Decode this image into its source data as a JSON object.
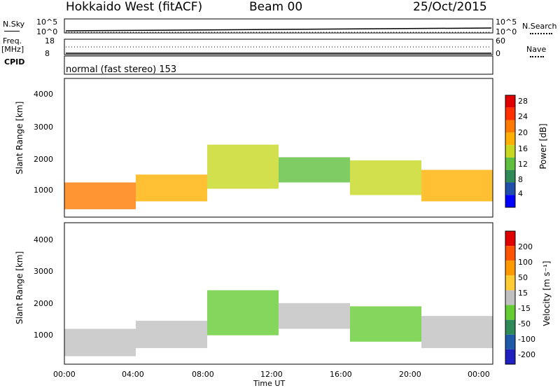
{
  "header": {
    "station": "Hokkaido West (fitACF)",
    "beam": "Beam 00",
    "date": "25/Oct/2015"
  },
  "top_panels": {
    "nsky_label": "N.Sky",
    "nsky_ticks": [
      "10^5",
      "10^0"
    ],
    "nsearch_label": "N.Search",
    "nsearch_ticks": [
      "10^5",
      "10^0"
    ],
    "freq_label": "Freq.",
    "freq_unit": "[MHz]",
    "freq_ticks": [
      "18",
      "8"
    ],
    "nave_label": "Nave",
    "nave_ticks": [
      "60",
      "0"
    ],
    "cpid_label": "CPID",
    "cpid_value": "normal (fast stereo) 153"
  },
  "colors": {
    "power_scale": [
      "#0000ff",
      "#1f4faa",
      "#2e8b57",
      "#5fbf3f",
      "#c8d820",
      "#ffb000",
      "#ff7a00",
      "#ff3000",
      "#e00000"
    ],
    "velocity_scale": [
      "#2020c0",
      "#1e5aa8",
      "#2e8b57",
      "#66cc33",
      "#c0c0c0",
      "#ffcc33",
      "#ff9900",
      "#ff5500",
      "#e00000"
    ]
  },
  "chart_data": [
    {
      "type": "heatmap",
      "name": "power",
      "ylabel": "Slant Range [km]",
      "yticks": [
        "4000",
        "3000",
        "2000",
        "1000"
      ],
      "ylim": [
        200,
        4600
      ],
      "xlim": [
        "00:00",
        "24:00"
      ],
      "colorbar": {
        "label": "Power [dB]",
        "ticks": [
          "28",
          "24",
          "20",
          "16",
          "12",
          "8",
          "4"
        ],
        "range": [
          0,
          30
        ]
      },
      "bands": [
        {
          "t0": 0,
          "t1": 4,
          "r_low": 450,
          "r_high": 1300,
          "value": 22
        },
        {
          "t0": 4,
          "t1": 8,
          "r_low": 700,
          "r_high": 1550,
          "value": 18
        },
        {
          "t0": 8,
          "t1": 12,
          "r_low": 1100,
          "r_high": 2500,
          "value": 14
        },
        {
          "t0": 12,
          "t1": 16,
          "r_low": 1300,
          "r_high": 2100,
          "value": 12
        },
        {
          "t0": 16,
          "t1": 20,
          "r_low": 900,
          "r_high": 2000,
          "value": 14
        },
        {
          "t0": 20,
          "t1": 24,
          "r_low": 700,
          "r_high": 1700,
          "value": 18
        }
      ]
    },
    {
      "type": "heatmap",
      "name": "velocity",
      "ylabel": "Slant Range [km]",
      "yticks": [
        "4000",
        "3000",
        "2000",
        "1000"
      ],
      "ylim": [
        200,
        4600
      ],
      "xlabel": "Time UT",
      "xticks": [
        "00:00",
        "04:00",
        "08:00",
        "12:00",
        "16:00",
        "20:00",
        "00:00"
      ],
      "xlim": [
        "00:00",
        "24:00"
      ],
      "colorbar": {
        "label": "Velocity [m s⁻¹]",
        "ticks": [
          "200",
          "100",
          "50",
          "15",
          "-15",
          "-50",
          "-100",
          "-200"
        ],
        "range": [
          -250,
          250
        ]
      },
      "bands": [
        {
          "t0": 0,
          "t1": 4,
          "r_low": 450,
          "r_high": 1300,
          "value": 0
        },
        {
          "t0": 4,
          "t1": 8,
          "r_low": 700,
          "r_high": 1550,
          "value": 0
        },
        {
          "t0": 8,
          "t1": 12,
          "r_low": 1100,
          "r_high": 2500,
          "value": -40
        },
        {
          "t0": 12,
          "t1": 16,
          "r_low": 1300,
          "r_high": 2100,
          "value": 0
        },
        {
          "t0": 16,
          "t1": 20,
          "r_low": 900,
          "r_high": 2000,
          "value": -60
        },
        {
          "t0": 20,
          "t1": 24,
          "r_low": 700,
          "r_high": 1700,
          "value": 20
        }
      ]
    }
  ]
}
